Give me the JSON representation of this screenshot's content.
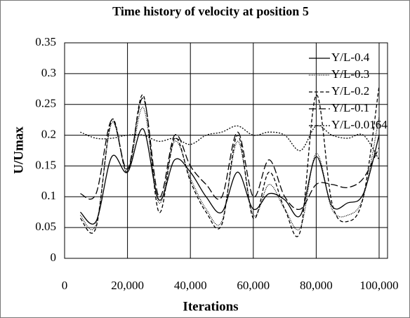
{
  "chart_data": {
    "type": "line",
    "title": "Time history of velocity at position 5",
    "x_label": "Iterations",
    "y_label": "U/Umax",
    "x": [
      5000,
      10000,
      15000,
      20000,
      25000,
      30000,
      35000,
      40000,
      45000,
      50000,
      55000,
      60000,
      65000,
      70000,
      75000,
      80000,
      85000,
      90000,
      95000,
      100000
    ],
    "series": [
      {
        "name": "Y/L-0.4",
        "color": "#000000",
        "dash": "none",
        "values": [
          0.075,
          0.06,
          0.165,
          0.14,
          0.21,
          0.095,
          0.16,
          0.14,
          0.1,
          0.075,
          0.14,
          0.08,
          0.105,
          0.095,
          0.07,
          0.165,
          0.085,
          0.09,
          0.105,
          0.2
        ]
      },
      {
        "name": "Y/L-0.3",
        "color": "#000000",
        "dash": "1,1.5",
        "values": [
          0.07,
          0.055,
          0.22,
          0.14,
          0.245,
          0.09,
          0.19,
          0.13,
          0.08,
          0.06,
          0.19,
          0.07,
          0.12,
          0.08,
          0.05,
          0.17,
          0.08,
          0.07,
          0.1,
          0.23
        ]
      },
      {
        "name": "Y/L-0.2",
        "color": "#000000",
        "dash": "5,3",
        "values": [
          0.065,
          0.05,
          0.225,
          0.14,
          0.265,
          0.075,
          0.195,
          0.125,
          0.075,
          0.055,
          0.2,
          0.065,
          0.14,
          0.08,
          0.045,
          0.265,
          0.09,
          0.06,
          0.1,
          0.28
        ]
      },
      {
        "name": "Y/L-0.1",
        "color": "#000000",
        "dash": "10,4",
        "values": [
          0.105,
          0.105,
          0.225,
          0.145,
          0.26,
          0.1,
          0.2,
          0.15,
          0.12,
          0.1,
          0.205,
          0.1,
          0.16,
          0.1,
          0.08,
          0.12,
          0.12,
          0.115,
          0.13,
          0.18
        ]
      },
      {
        "name": "Y/L-0.0164",
        "color": "#000000",
        "dash": "2,2",
        "values": [
          0.205,
          0.195,
          0.195,
          0.2,
          0.2,
          0.19,
          0.195,
          0.185,
          0.2,
          0.205,
          0.215,
          0.2,
          0.205,
          0.2,
          0.175,
          0.215,
          0.2,
          0.195,
          0.2,
          0.16
        ]
      }
    ],
    "xlim": [
      0,
      100000
    ],
    "xticks": [
      0,
      {
        "value": 20000,
        "label": "20,000"
      },
      {
        "value": 40000,
        "label": "40,000"
      },
      {
        "value": 60000,
        "label": "60,000"
      },
      {
        "value": 80000,
        "label": "80,000"
      },
      {
        "value": 100000,
        "label": "100,000"
      }
    ],
    "ylim": [
      0,
      0.35
    ],
    "yticks": [
      0,
      0.05,
      0.1,
      0.15,
      0.2,
      0.25,
      0.3,
      0.35
    ],
    "grid": true,
    "legend": "top-right"
  }
}
